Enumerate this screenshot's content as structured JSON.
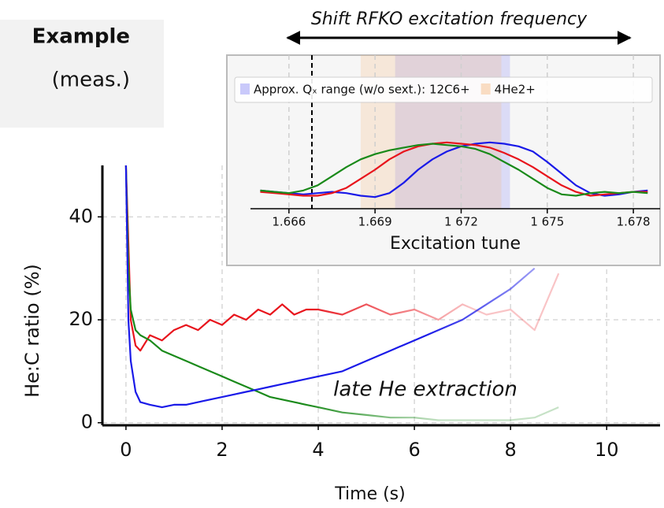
{
  "header": {
    "title": "Example",
    "subtitle": "(meas.)"
  },
  "chart_data": [
    {
      "type": "line",
      "x_label": "Time (s)",
      "y_label": "He:C ratio (%)",
      "annotation": "late He extraction",
      "x": [
        0,
        0.05,
        0.1,
        0.2,
        0.3,
        0.5,
        0.75,
        1,
        1.25,
        1.5,
        1.75,
        2,
        2.25,
        2.5,
        2.75,
        3,
        3.25,
        3.5,
        3.75,
        4,
        4.5,
        5,
        5.5,
        6,
        6.5,
        7,
        7.5,
        8,
        8.5,
        9
      ],
      "series": [
        {
          "color": "#e8141c",
          "values": [
            50,
            35,
            20,
            15,
            14,
            17,
            16,
            18,
            19,
            18,
            20,
            19,
            21,
            20,
            22,
            21,
            23,
            21,
            22,
            22,
            21,
            23,
            21,
            22,
            20,
            23,
            21,
            22,
            18,
            29
          ]
        },
        {
          "color": "#1a8a1a",
          "values": [
            50,
            30,
            22,
            18,
            17,
            16,
            14,
            13,
            12,
            11,
            10,
            9,
            8,
            7,
            6,
            5,
            4.5,
            4,
            3.5,
            3,
            2,
            1.5,
            1,
            1,
            0.5,
            0.5,
            0.5,
            0.5,
            1,
            3
          ]
        },
        {
          "color": "#1a1ae8",
          "values": [
            50,
            20,
            12,
            6,
            4,
            3.5,
            3,
            3.5,
            3.5,
            4,
            4.5,
            5,
            5.5,
            6,
            6.5,
            7,
            7.5,
            8,
            8.5,
            9,
            10,
            12,
            14,
            16,
            18,
            20,
            23,
            26,
            30,
            null
          ]
        }
      ],
      "xlim": [
        -0.49,
        11.11
      ],
      "xticks": [
        0,
        2,
        4,
        6,
        8,
        10
      ],
      "ylim": [
        -0.5,
        50
      ],
      "yticks": [
        0,
        20,
        40
      ],
      "grid": true
    },
    {
      "type": "line",
      "title": "Shift RFKO excitation frequency",
      "x_label": "Excitation tune",
      "x": [
        1.665,
        1.6655,
        1.666,
        1.6665,
        1.667,
        1.6675,
        1.668,
        1.6685,
        1.669,
        1.6695,
        1.67,
        1.6705,
        1.671,
        1.6715,
        1.672,
        1.6725,
        1.673,
        1.6735,
        1.674,
        1.6745,
        1.675,
        1.6755,
        1.676,
        1.6765,
        1.677,
        1.6775,
        1.678,
        1.6785
      ],
      "series": [
        {
          "color": "#1a1ae8",
          "values": [
            0.14,
            0.13,
            0.12,
            0.11,
            0.12,
            0.13,
            0.12,
            0.1,
            0.09,
            0.12,
            0.2,
            0.3,
            0.38,
            0.44,
            0.48,
            0.5,
            0.51,
            0.5,
            0.48,
            0.44,
            0.36,
            0.27,
            0.18,
            0.12,
            0.1,
            0.11,
            0.13,
            0.14
          ]
        },
        {
          "color": "#e8141c",
          "values": [
            0.13,
            0.12,
            0.11,
            0.1,
            0.1,
            0.12,
            0.16,
            0.23,
            0.3,
            0.38,
            0.44,
            0.48,
            0.5,
            0.51,
            0.5,
            0.49,
            0.47,
            0.43,
            0.38,
            0.32,
            0.25,
            0.18,
            0.13,
            0.1,
            0.11,
            0.12,
            0.13,
            0.13
          ]
        },
        {
          "color": "#1a8a1a",
          "values": [
            0.14,
            0.13,
            0.12,
            0.14,
            0.18,
            0.25,
            0.32,
            0.38,
            0.42,
            0.45,
            0.47,
            0.49,
            0.5,
            0.49,
            0.48,
            0.46,
            0.42,
            0.36,
            0.3,
            0.23,
            0.16,
            0.11,
            0.1,
            0.12,
            0.13,
            0.12,
            0.13,
            0.12
          ]
        }
      ],
      "spans": [
        {
          "name": "Approx. Qₓ range (w/o sext.): 12C6+",
          "color": "#7b7bf5",
          "range": [
            1.6697,
            1.6737
          ]
        },
        {
          "name": "4He2+",
          "color": "#f5b070",
          "range": [
            1.6685,
            1.6734
          ]
        }
      ],
      "vline": 1.6668,
      "xlim": [
        1.66466,
        1.67893
      ],
      "xticks": [
        1.666,
        1.669,
        {
          "value": 1.672,
          "label": "1 672"
        },
        {
          "value": 1.675,
          "label": "1 675"
        },
        1.678
      ],
      "ylim": [
        0,
        1
      ],
      "grid": true
    }
  ]
}
